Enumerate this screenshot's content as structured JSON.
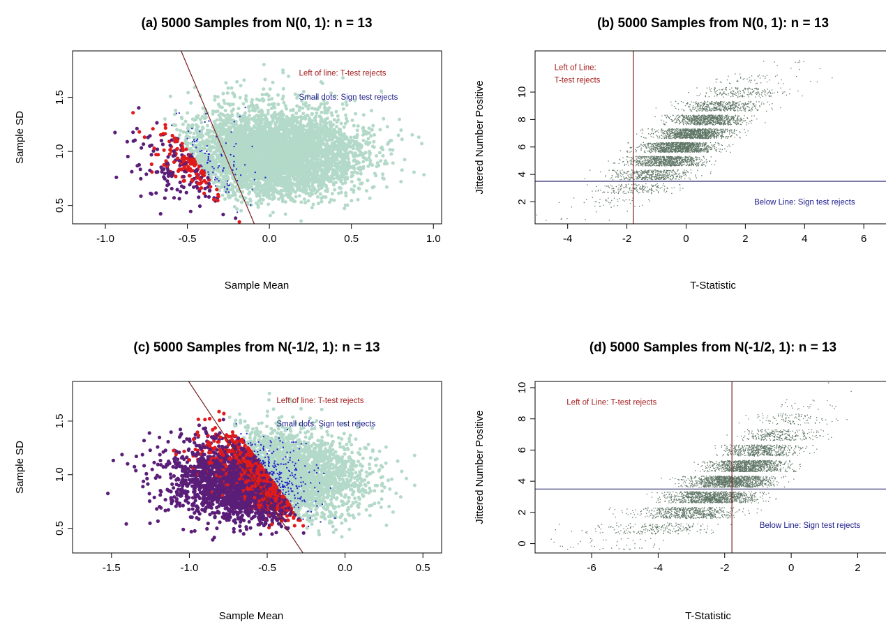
{
  "colors": {
    "cloud": "#b3d9c9",
    "ttest_reject": "#e01b1b",
    "both_reject": "#5a1e78",
    "sign_reject": "#1e1ec8",
    "jitter_points": "#5e7565",
    "ttest_line": "#7a1f1f",
    "sign_line": "#2a2a6e",
    "ann_ttest": "#a31d1d",
    "ann_sign": "#1c1c8c"
  },
  "chart_data": [
    {
      "id": "a",
      "type": "scatter",
      "title": "(a) 5000 Samples from N(0, 1): n = 13",
      "xlabel": "Sample Mean",
      "ylabel": "Sample SD",
      "xlim": [
        -1.2,
        1.05
      ],
      "ylim": [
        0.33,
        1.93
      ],
      "xticks": [
        "-1.0",
        "-0.5",
        "0.0",
        "0.5",
        "1.0"
      ],
      "xtick_values": [
        -1.0,
        -0.5,
        0.0,
        0.5,
        1.0
      ],
      "yticks": [
        "0.5",
        "1.0",
        "1.5"
      ],
      "ytick_values": [
        0.5,
        1.0,
        1.5
      ],
      "sampling": {
        "mu": 0,
        "sigma": 1,
        "n": 13,
        "samples": 5000
      },
      "reject_line": {
        "slope": -3.586,
        "intercept": 0
      },
      "annotations": [
        {
          "text": "Left of line: T-test rejects",
          "x": 0.18,
          "y": 1.7,
          "color_key": "ann_ttest"
        },
        {
          "text": "Small dots: Sign test rejects",
          "x": 0.18,
          "y": 1.48,
          "color_key": "ann_sign"
        }
      ],
      "grid": false
    },
    {
      "id": "b",
      "type": "scatter",
      "title": "(b) 5000 Samples from N(0, 1): n = 13",
      "xlabel": "T-Statistic",
      "ylabel": "Jittered Number Positive",
      "xlim": [
        -5.1,
        6.75
      ],
      "ylim": [
        0.4,
        13.0
      ],
      "xticks": [
        "-4",
        "-2",
        "0",
        "2",
        "4",
        "6"
      ],
      "xtick_values": [
        -4,
        -2,
        0,
        2,
        4,
        6
      ],
      "yticks": [
        "2",
        "4",
        "6",
        "8",
        "10"
      ],
      "ytick_values": [
        2,
        4,
        6,
        8,
        10
      ],
      "sampling": {
        "mu": 0,
        "sigma": 1,
        "n": 13,
        "samples": 5000
      },
      "vline": -1.782,
      "hline": 3.5,
      "annotations": [
        {
          "text": "Left of Line:",
          "x": -4.45,
          "y": 11.6,
          "color_key": "ann_ttest"
        },
        {
          "text": "T-test rejects",
          "x": -4.45,
          "y": 10.7,
          "color_key": "ann_ttest"
        },
        {
          "text": "Below Line: Sign test rejects",
          "x": 2.3,
          "y": 1.8,
          "color_key": "ann_sign"
        }
      ],
      "grid": false
    },
    {
      "id": "c",
      "type": "scatter",
      "title": "(c) 5000 Samples from N(-1/2, 1): n = 13",
      "xlabel": "Sample Mean",
      "ylabel": "Sample SD",
      "xlim": [
        -1.75,
        0.62
      ],
      "ylim": [
        0.27,
        1.87
      ],
      "xticks": [
        "-1.5",
        "-1.0",
        "-0.5",
        "0.0",
        "0.5"
      ],
      "xtick_values": [
        -1.5,
        -1.0,
        -0.5,
        0.0,
        0.5
      ],
      "yticks": [
        "0.5",
        "1.0",
        "1.5"
      ],
      "ytick_values": [
        0.5,
        1.0,
        1.5
      ],
      "sampling": {
        "mu": -0.5,
        "sigma": 1,
        "n": 13,
        "samples": 5000
      },
      "reject_line": {
        "slope": -2.18,
        "intercept": -0.32
      },
      "annotations": [
        {
          "text": "Left of line: T-test rejects",
          "x": -0.44,
          "y": 1.67,
          "color_key": "ann_ttest"
        },
        {
          "text": "Small dots: Sign test rejects",
          "x": -0.44,
          "y": 1.45,
          "color_key": "ann_sign"
        }
      ],
      "grid": false
    },
    {
      "id": "d",
      "type": "scatter",
      "title": "(d) 5000 Samples from N(-1/2, 1): n = 13",
      "xlabel": "T-Statistic",
      "ylabel": "Jittered Number Positive",
      "xlim": [
        -7.7,
        2.85
      ],
      "ylim": [
        -0.6,
        10.4
      ],
      "xticks": [
        "-6",
        "-4",
        "-2",
        "0",
        "2"
      ],
      "xtick_values": [
        -6,
        -4,
        -2,
        0,
        2
      ],
      "yticks": [
        "0",
        "2",
        "4",
        "6",
        "8",
        "10"
      ],
      "ytick_values": [
        0,
        2,
        4,
        6,
        8,
        10
      ],
      "sampling": {
        "mu": -0.5,
        "sigma": 1,
        "n": 13,
        "samples": 5000
      },
      "vline": -1.782,
      "hline": 3.5,
      "annotations": [
        {
          "text": "Left of Line: T-test rejects",
          "x": -6.75,
          "y": 8.9,
          "color_key": "ann_ttest"
        },
        {
          "text": "Below Line: Sign test rejects",
          "x": -0.95,
          "y": 1.0,
          "color_key": "ann_sign"
        }
      ],
      "grid": false
    }
  ]
}
